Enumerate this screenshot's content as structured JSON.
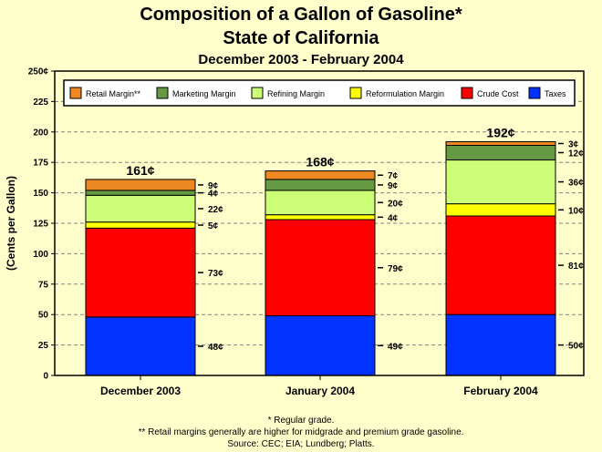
{
  "chart_data": {
    "type": "bar",
    "stacked": true,
    "title": "Composition of a Gallon of Gasoline*",
    "subtitle": "State of California",
    "period": "December 2003 - February 2004",
    "ylabel": "(Cents per Gallon)",
    "ylim": [
      0,
      250
    ],
    "ytick_step": 25,
    "ytick_suffix": "¢",
    "grid": true,
    "legend_position": "top",
    "categories": [
      "December 2003",
      "January 2004",
      "February 2004"
    ],
    "totals": [
      "161¢",
      "168¢",
      "192¢"
    ],
    "series": [
      {
        "name": "Taxes",
        "color": "#0033FF",
        "values": [
          48,
          49,
          50
        ]
      },
      {
        "name": "Crude Cost",
        "color": "#FF0000",
        "values": [
          73,
          79,
          81
        ]
      },
      {
        "name": "Reformulation Margin",
        "color": "#FFFF00",
        "values": [
          5,
          4,
          10
        ]
      },
      {
        "name": "Refining Margin",
        "color": "#CCFF77",
        "values": [
          22,
          20,
          36
        ]
      },
      {
        "name": "Marketing Margin",
        "color": "#669944",
        "values": [
          4,
          9,
          12
        ]
      },
      {
        "name": "Retail Margin**",
        "color": "#EE8822",
        "values": [
          9,
          7,
          3
        ]
      }
    ],
    "legend_order": [
      "Retail Margin**",
      "Marketing Margin",
      "Refining Margin",
      "Reformulation Margin",
      "Crude Cost",
      "Taxes"
    ]
  },
  "footnotes": [
    "* Regular grade.",
    "** Retail margins generally are higher for midgrade and premium grade gasoline.",
    "Source:  CEC; EIA; Lundberg; Platts."
  ]
}
